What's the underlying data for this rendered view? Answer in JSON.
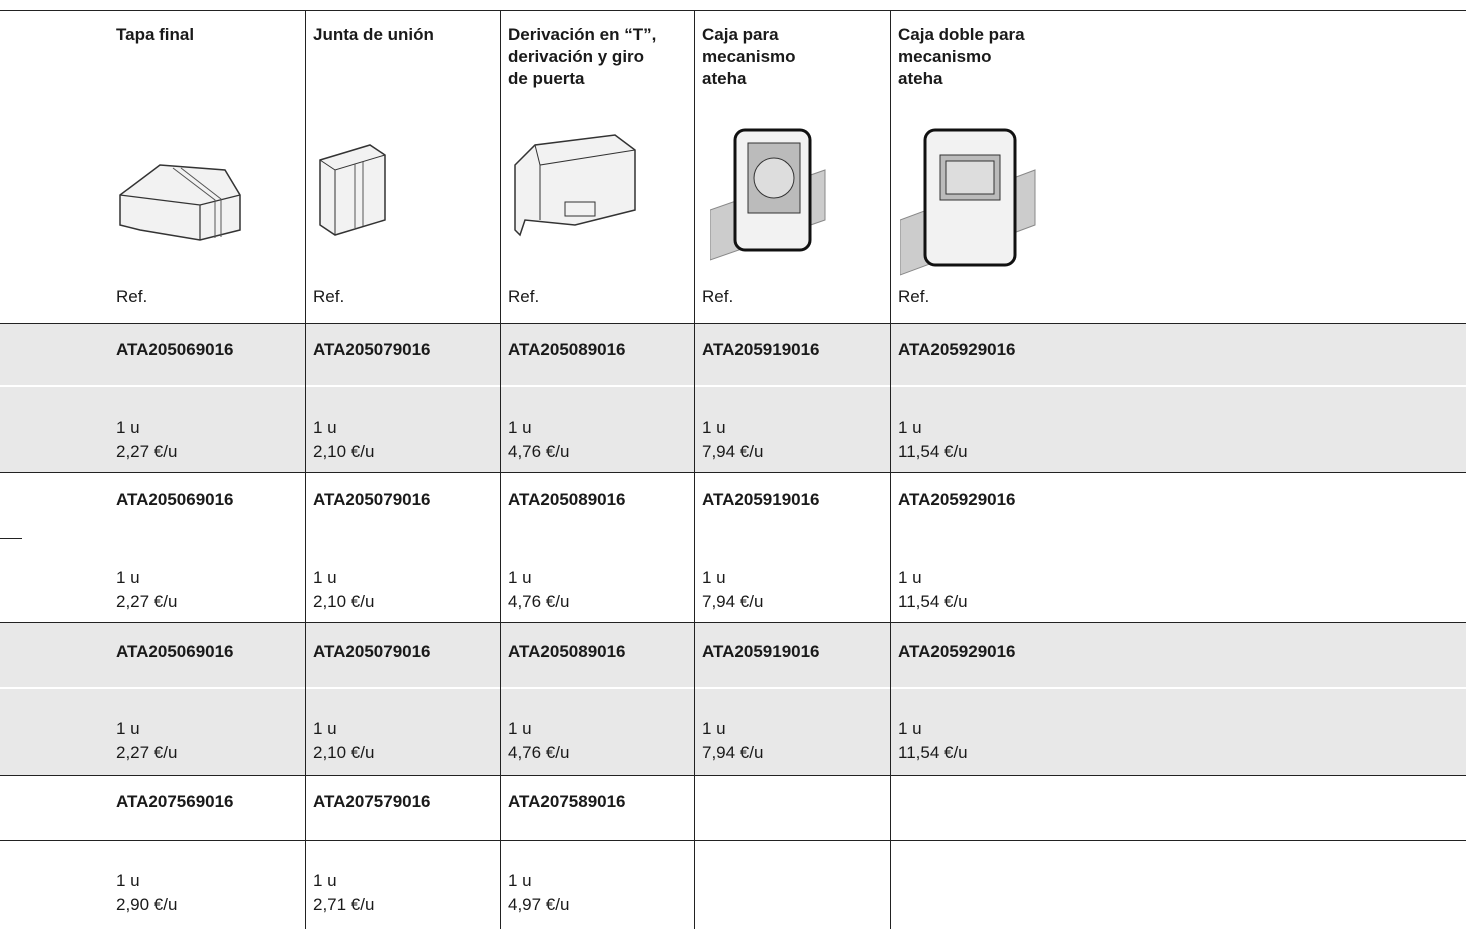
{
  "header": {
    "columns": [
      {
        "title": [
          "Tapa final"
        ],
        "ref_label": "Ref."
      },
      {
        "title": [
          "Junta de unión"
        ],
        "ref_label": "Ref."
      },
      {
        "title": [
          "Derivación en “T”,",
          "derivación y  giro",
          "de puerta"
        ],
        "ref_label": "Ref."
      },
      {
        "title": [
          "Caja para",
          "mecanismo",
          "ateha"
        ],
        "ref_label": "Ref."
      },
      {
        "title": [
          "Caja doble para",
          "mecanismo",
          "ateha"
        ],
        "ref_label": "Ref."
      }
    ]
  },
  "rows": [
    {
      "refs": [
        "ATA205069016",
        "ATA205079016",
        "ATA205089016",
        "ATA205919016",
        "ATA205929016"
      ],
      "qty": [
        "1 u",
        "1 u",
        "1 u",
        "1 u",
        "1 u"
      ],
      "price": [
        "2,27 €/u",
        "2,10 €/u",
        "4,76 €/u",
        "7,94 €/u",
        "11,54 €/u"
      ]
    },
    {
      "refs": [
        "ATA205069016",
        "ATA205079016",
        "ATA205089016",
        "ATA205919016",
        "ATA205929016"
      ],
      "qty": [
        "1 u",
        "1 u",
        "1 u",
        "1 u",
        "1 u"
      ],
      "price": [
        "2,27 €/u",
        "2,10 €/u",
        "4,76 €/u",
        "7,94 €/u",
        "11,54 €/u"
      ]
    },
    {
      "refs": [
        "ATA205069016",
        "ATA205079016",
        "ATA205089016",
        "ATA205919016",
        "ATA205929016"
      ],
      "qty": [
        "1 u",
        "1 u",
        "1 u",
        "1 u",
        "1 u"
      ],
      "price": [
        "2,27 €/u",
        "2,10 €/u",
        "4,76 €/u",
        "7,94 €/u",
        "11,54 €/u"
      ]
    },
    {
      "refs": [
        "ATA207569016",
        "ATA207579016",
        "ATA207589016"
      ],
      "qty": [
        "1 u",
        "1 u",
        "1 u"
      ],
      "price": [
        "2,90 €/u",
        "2,71 €/u",
        "4,97 €/u"
      ]
    }
  ]
}
